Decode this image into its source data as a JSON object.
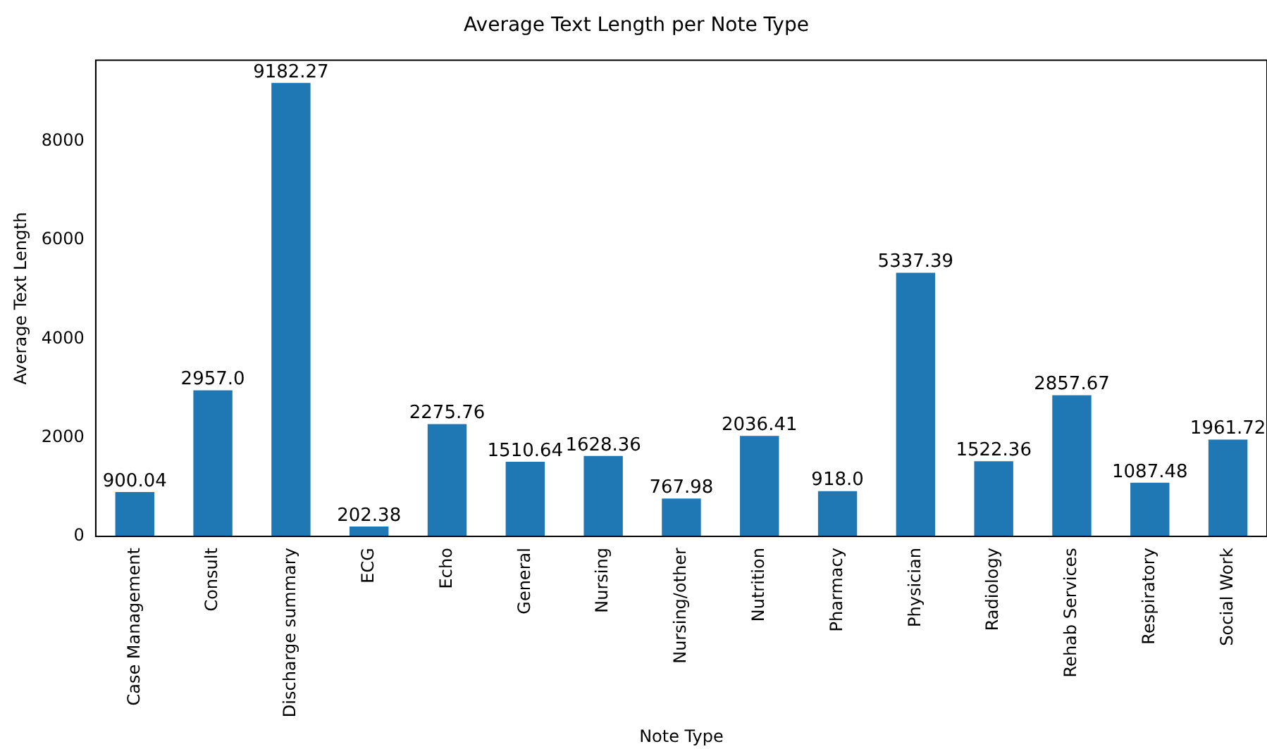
{
  "chart_data": {
    "type": "bar",
    "title": "Average Text Length per Note Type",
    "xlabel": "Note Type",
    "ylabel": "Average Text Length",
    "categories": [
      "Case Management",
      "Consult",
      "Discharge summary",
      "ECG",
      "Echo",
      "General",
      "Nursing",
      "Nursing/other",
      "Nutrition",
      "Pharmacy",
      "Physician",
      "Radiology",
      "Rehab Services",
      "Respiratory",
      "Social Work"
    ],
    "values": [
      900.04,
      2957.0,
      9182.27,
      202.38,
      2275.76,
      1510.64,
      1628.36,
      767.98,
      2036.41,
      918.0,
      5337.39,
      1522.36,
      2857.67,
      1087.48,
      1961.72
    ],
    "value_labels": [
      "900.04",
      "2957.0",
      "9182.27",
      "202.38",
      "2275.76",
      "1510.64",
      "1628.36",
      "767.98",
      "2036.41",
      "918.0",
      "5337.39",
      "1522.36",
      "2857.67",
      "1087.48",
      "1961.72"
    ],
    "color": "#1f77b4",
    "ylim": [
      0,
      9641
    ],
    "yticks": [
      0,
      2000,
      4000,
      6000,
      8000
    ],
    "grid": false,
    "legend": false
  }
}
